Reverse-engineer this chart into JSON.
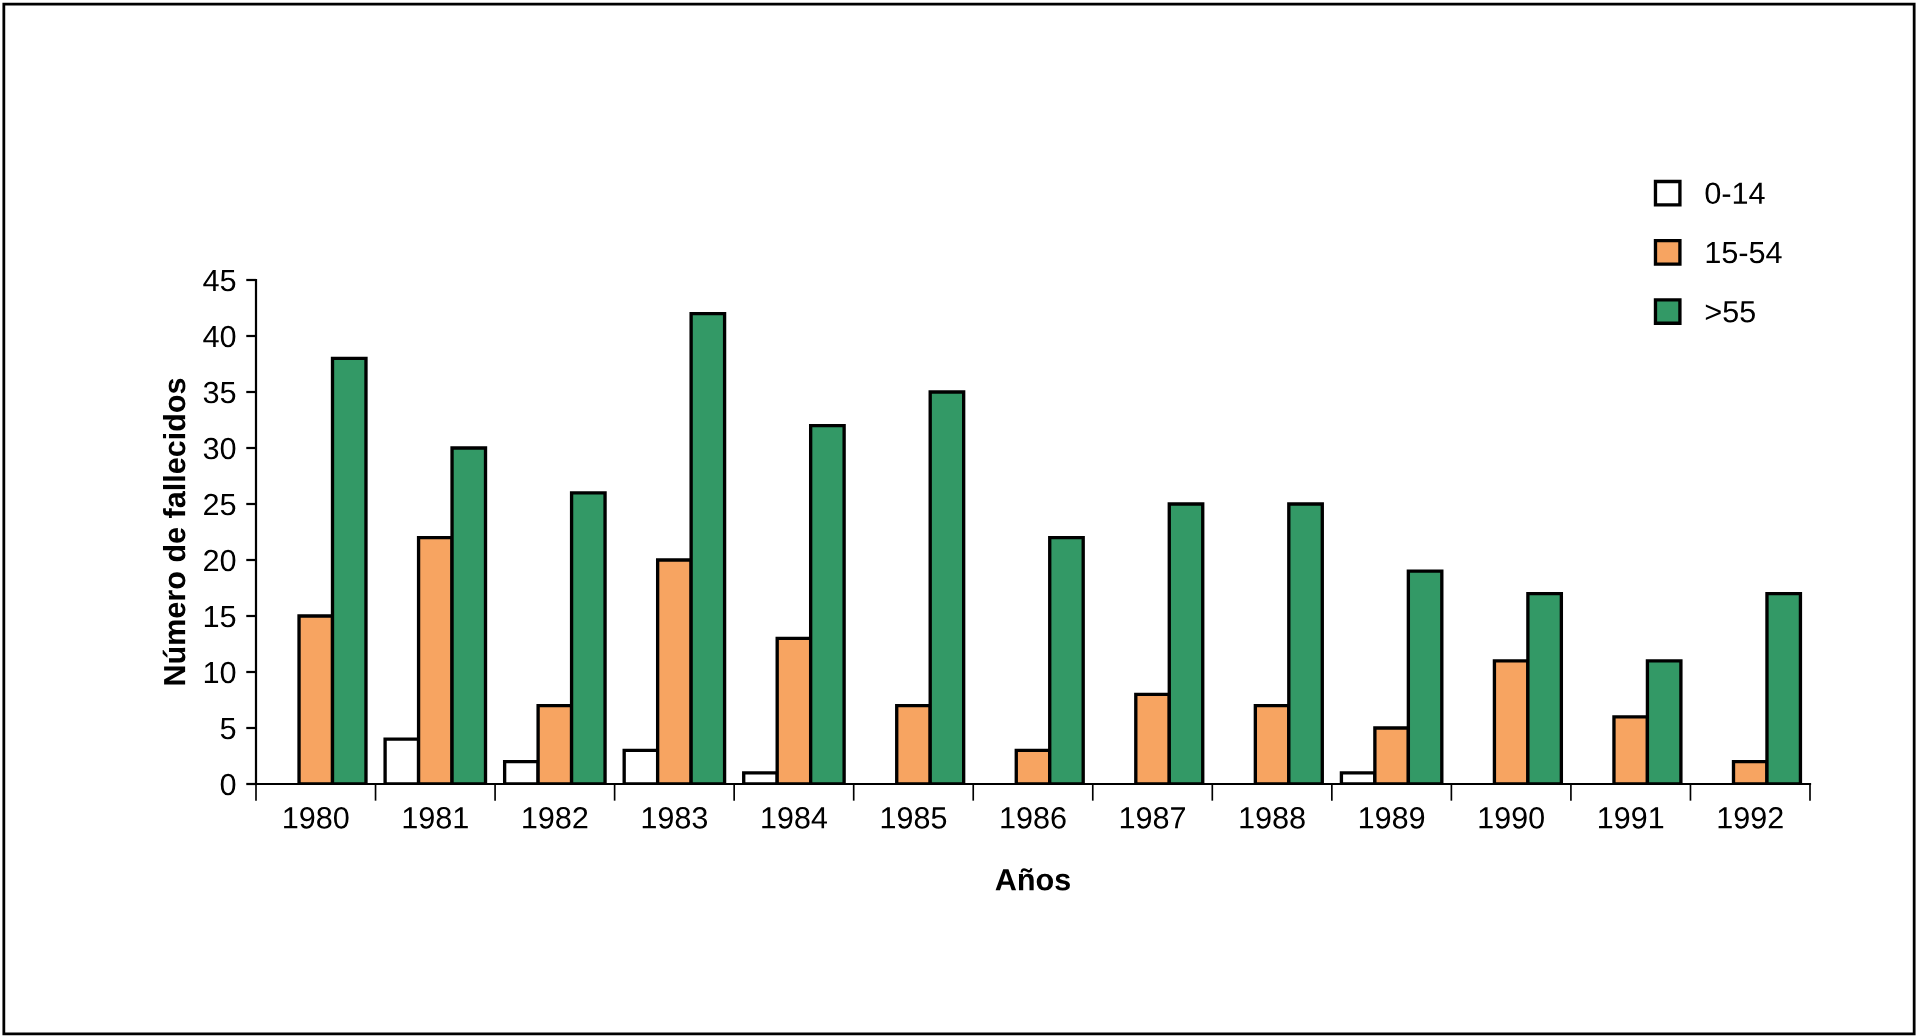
{
  "chart_data": {
    "type": "bar",
    "xlabel": "Años",
    "ylabel": "Número de fallecidos",
    "categories": [
      "1980",
      "1981",
      "1982",
      "1983",
      "1984",
      "1985",
      "1986",
      "1987",
      "1988",
      "1989",
      "1990",
      "1991",
      "1992"
    ],
    "series": [
      {
        "name": "0-14",
        "color": "#ffffff",
        "values": [
          null,
          4,
          2,
          3,
          1,
          null,
          null,
          null,
          null,
          1,
          null,
          null,
          null
        ]
      },
      {
        "name": "15-54",
        "color": "#f7a461",
        "values": [
          15,
          22,
          7,
          20,
          13,
          7,
          3,
          8,
          7,
          5,
          11,
          6,
          2
        ]
      },
      {
        "name": ">55",
        "color": "#339966",
        "values": [
          38,
          30,
          26,
          42,
          32,
          35,
          22,
          25,
          25,
          19,
          17,
          11,
          17
        ]
      }
    ],
    "ylim": [
      0,
      45
    ],
    "yticks": [
      0,
      5,
      10,
      15,
      20,
      25,
      30,
      35,
      40,
      45
    ],
    "grid": false,
    "legend": "top right"
  }
}
